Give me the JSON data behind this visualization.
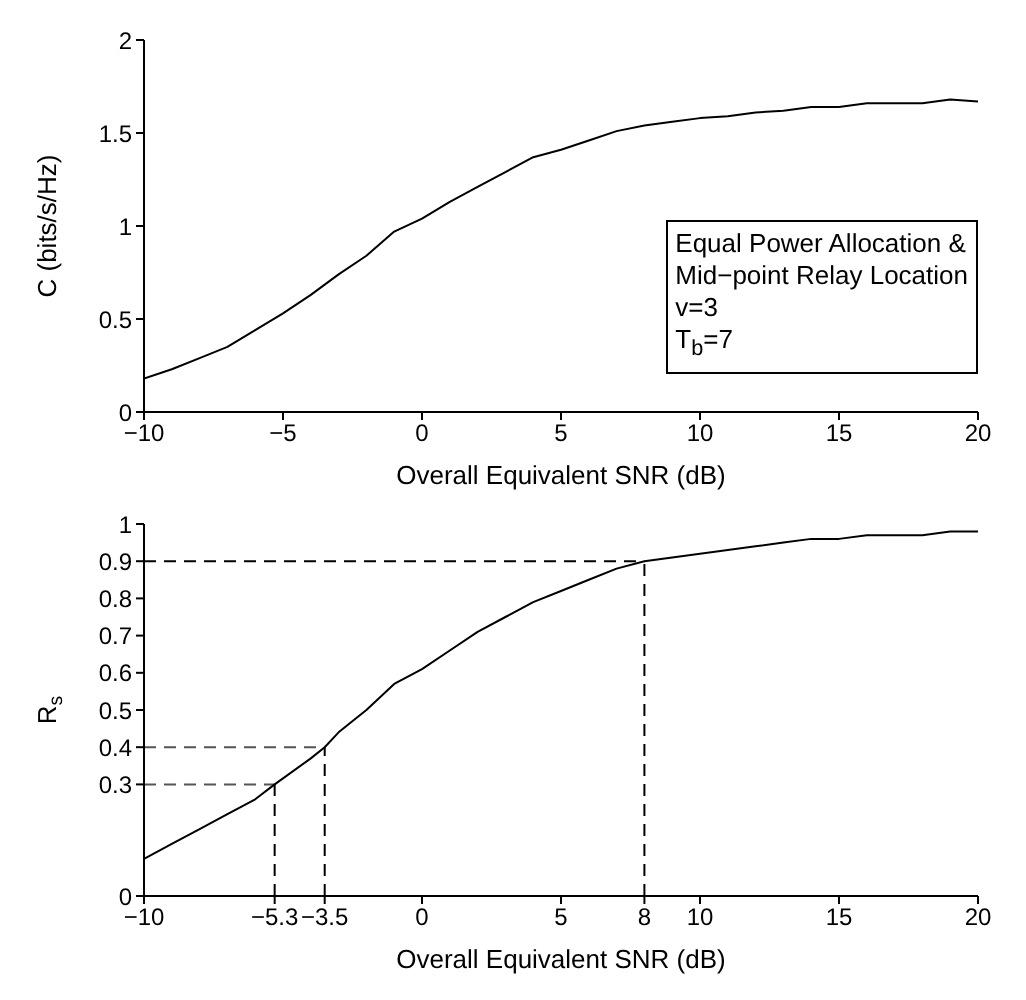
{
  "chart_data": [
    {
      "type": "line",
      "xlabel": "Overall Equivalent SNR (dB)",
      "ylabel": "C (bits/s/Hz)",
      "x": [
        -10,
        -9,
        -8,
        -7,
        -6,
        -5,
        -4,
        -3,
        -2,
        -1,
        0,
        1,
        2,
        3,
        4,
        5,
        6,
        7,
        8,
        9,
        10,
        11,
        12,
        13,
        14,
        15,
        16,
        17,
        18,
        19,
        20
      ],
      "series": [
        {
          "color": "#000000",
          "values": [
            0.18,
            0.23,
            0.29,
            0.35,
            0.44,
            0.53,
            0.63,
            0.74,
            0.84,
            0.97,
            1.04,
            1.13,
            1.21,
            1.29,
            1.37,
            1.41,
            1.46,
            1.51,
            1.54,
            1.56,
            1.58,
            1.59,
            1.61,
            1.62,
            1.64,
            1.64,
            1.66,
            1.66,
            1.66,
            1.68,
            1.67
          ]
        }
      ],
      "xlim": [
        -10,
        20
      ],
      "xticks": [
        -10,
        -5,
        0,
        5,
        10,
        15,
        20
      ],
      "ylim": [
        0,
        2
      ],
      "yticks": [
        0,
        0.5,
        1,
        1.5,
        2
      ],
      "annotations": [
        "Equal Power Allocation &",
        "Mid−point Relay Location",
        "v=3",
        "T$_{b}$=7"
      ],
      "marker": "none",
      "line_style": "solid",
      "grid": false,
      "legend": false
    },
    {
      "type": "line",
      "xlabel": "Overall Equivalent SNR (dB)",
      "ylabel": "R$_{s}$",
      "x": [
        -10,
        -9,
        -8,
        -7,
        -6,
        -5.3,
        -4,
        -3.5,
        -3,
        -2,
        -1,
        0,
        1,
        2,
        3,
        4,
        5,
        6,
        7,
        8,
        9,
        10,
        11,
        12,
        13,
        14,
        15,
        16,
        17,
        18,
        19,
        20
      ],
      "series": [
        {
          "color": "#000000",
          "values": [
            0.1,
            0.14,
            0.18,
            0.22,
            0.26,
            0.3,
            0.37,
            0.4,
            0.44,
            0.5,
            0.57,
            0.61,
            0.66,
            0.71,
            0.75,
            0.79,
            0.82,
            0.85,
            0.88,
            0.9,
            0.91,
            0.92,
            0.93,
            0.94,
            0.95,
            0.96,
            0.96,
            0.97,
            0.97,
            0.97,
            0.98,
            0.98
          ]
        }
      ],
      "xlim": [
        -10,
        20
      ],
      "xticks": [
        -10,
        -5.3,
        -3.5,
        0,
        5,
        8,
        10,
        15,
        20
      ],
      "ylim": [
        0,
        1
      ],
      "yticks": [
        0,
        0.3,
        0.4,
        0.5,
        0.6,
        0.7,
        0.8,
        0.9,
        1
      ],
      "ref_lines": [
        {
          "axis": "y",
          "value": 0.3,
          "color": "#555555",
          "line_style": "dashed"
        },
        {
          "axis": "y",
          "value": 0.4,
          "color": "#555555",
          "line_style": "dashed"
        },
        {
          "axis": "y",
          "value": 0.9,
          "color": "#000000",
          "line_style": "dashed"
        },
        {
          "axis": "x",
          "value": -5.3,
          "color": "#000000",
          "line_style": "dashed"
        },
        {
          "axis": "x",
          "value": -3.5,
          "color": "#000000",
          "line_style": "dashed"
        },
        {
          "axis": "x",
          "value": 8,
          "color": "#000000",
          "line_style": "dashed"
        }
      ],
      "marker": "none",
      "line_style": "solid",
      "grid": false,
      "legend": false
    }
  ]
}
